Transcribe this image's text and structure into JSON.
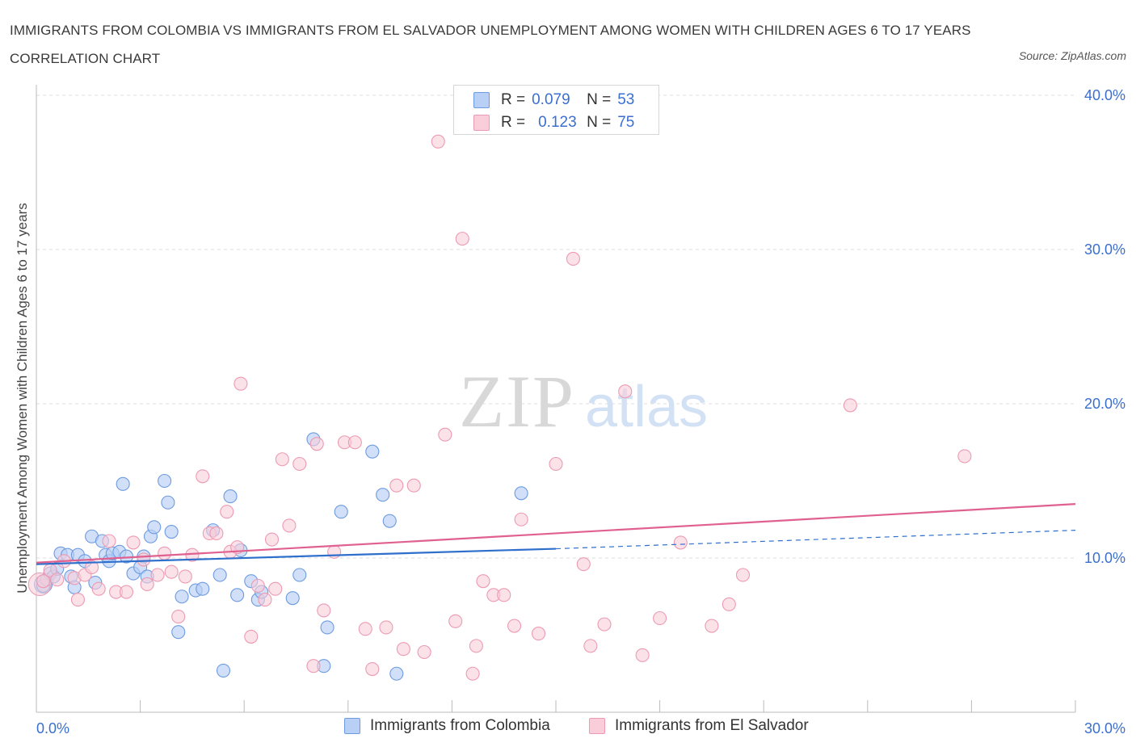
{
  "title": "IMMIGRANTS FROM COLOMBIA VS IMMIGRANTS FROM EL SALVADOR UNEMPLOYMENT AMONG WOMEN WITH CHILDREN AGES 6 TO 17 YEARS CORRELATION CHART",
  "source": "Source: ZipAtlas.com",
  "colors": {
    "colombia_fill": "#b8d0f5",
    "colombia_stroke": "#6d9be0",
    "colombia_line": "#2e6fcc",
    "elsalvador_fill": "#f9cdd9",
    "elsalvador_stroke": "#ec9ab3",
    "elsalvador_line": "#e0608f",
    "axis_label": "#3a6fd0",
    "grid": "#dddddd"
  },
  "legend_top": {
    "rows": [
      {
        "r_label": "R =",
        "r_value": "0.079",
        "n_label": "N =",
        "n_value": "53",
        "series": "colombia"
      },
      {
        "r_label": "R =",
        "r_value": "0.123",
        "n_label": "N =",
        "n_value": "75",
        "series": "elsalvador"
      }
    ]
  },
  "legend_bottom": {
    "items": [
      "Immigrants from Colombia",
      "Immigrants from El Salvador"
    ]
  },
  "chart_data": {
    "type": "scatter",
    "title": "IMMIGRANTS FROM COLOMBIA VS IMMIGRANTS FROM EL SALVADOR UNEMPLOYMENT AMONG WOMEN WITH CHILDREN AGES 6 TO 17 YEARS CORRELATION CHART",
    "xlabel": "",
    "ylabel": "Unemployment Among Women with Children Ages 6 to 17 years",
    "xlim": [
      0,
      30
    ],
    "ylim": [
      0,
      40
    ],
    "x_tick_labels": [
      "0.0%",
      "30.0%"
    ],
    "y_ticks": [
      10,
      20,
      30,
      40
    ],
    "y_tick_labels": [
      "10.0%",
      "20.0%",
      "30.0%",
      "40.0%"
    ],
    "grid": true,
    "legend_placement": "top-center",
    "watermark": "ZIPatlas",
    "series": [
      {
        "name": "Immigrants from Colombia",
        "r": 0.079,
        "n": 53,
        "trend": {
          "x0": 0,
          "y0": 9.6,
          "x1": 15,
          "y1": 10.6,
          "dashed_to_x": 30,
          "dashed_to_y": 11.8
        },
        "points": [
          [
            0.2,
            8.2
          ],
          [
            0.3,
            8.6
          ],
          [
            0.4,
            9.0
          ],
          [
            0.5,
            8.8
          ],
          [
            0.6,
            9.3
          ],
          [
            0.7,
            10.3
          ],
          [
            0.9,
            10.2
          ],
          [
            1.0,
            8.8
          ],
          [
            1.1,
            8.1
          ],
          [
            1.2,
            10.2
          ],
          [
            1.4,
            9.8
          ],
          [
            1.6,
            11.4
          ],
          [
            1.7,
            8.4
          ],
          [
            1.9,
            11.1
          ],
          [
            2.0,
            10.2
          ],
          [
            2.1,
            9.8
          ],
          [
            2.2,
            10.3
          ],
          [
            2.4,
            10.4
          ],
          [
            2.5,
            14.8
          ],
          [
            2.6,
            10.1
          ],
          [
            2.8,
            9.0
          ],
          [
            3.0,
            9.4
          ],
          [
            3.1,
            10.1
          ],
          [
            3.2,
            8.8
          ],
          [
            3.3,
            11.4
          ],
          [
            3.4,
            12.0
          ],
          [
            3.7,
            15.0
          ],
          [
            3.8,
            13.6
          ],
          [
            3.9,
            11.7
          ],
          [
            4.1,
            5.2
          ],
          [
            4.2,
            7.5
          ],
          [
            4.6,
            7.9
          ],
          [
            4.8,
            8.0
          ],
          [
            5.1,
            11.8
          ],
          [
            5.3,
            8.9
          ],
          [
            5.4,
            2.7
          ],
          [
            5.6,
            14.0
          ],
          [
            5.8,
            7.6
          ],
          [
            5.9,
            10.5
          ],
          [
            6.2,
            8.5
          ],
          [
            6.4,
            7.3
          ],
          [
            6.5,
            7.8
          ],
          [
            7.4,
            7.4
          ],
          [
            7.6,
            8.9
          ],
          [
            8.0,
            17.7
          ],
          [
            8.3,
            3.0
          ],
          [
            8.4,
            5.5
          ],
          [
            8.8,
            13.0
          ],
          [
            9.7,
            16.9
          ],
          [
            10.0,
            14.1
          ],
          [
            10.2,
            12.4
          ],
          [
            10.4,
            2.5
          ],
          [
            14.0,
            14.2
          ]
        ]
      },
      {
        "name": "Immigrants from El Salvador",
        "r": 0.123,
        "n": 75,
        "trend": {
          "x0": 0,
          "y0": 9.7,
          "x1": 30,
          "y1": 13.5
        },
        "points": [
          [
            0.2,
            8.5
          ],
          [
            0.4,
            9.2
          ],
          [
            0.6,
            8.6
          ],
          [
            0.8,
            9.8
          ],
          [
            1.1,
            8.7
          ],
          [
            1.2,
            7.3
          ],
          [
            1.4,
            8.9
          ],
          [
            1.6,
            9.4
          ],
          [
            1.8,
            8.0
          ],
          [
            2.1,
            11.1
          ],
          [
            2.3,
            7.8
          ],
          [
            2.6,
            7.8
          ],
          [
            2.8,
            11.0
          ],
          [
            3.1,
            9.9
          ],
          [
            3.2,
            8.3
          ],
          [
            3.5,
            8.9
          ],
          [
            3.7,
            10.3
          ],
          [
            3.9,
            9.1
          ],
          [
            4.1,
            6.2
          ],
          [
            4.3,
            8.8
          ],
          [
            4.5,
            10.2
          ],
          [
            4.8,
            15.3
          ],
          [
            5.0,
            11.6
          ],
          [
            5.2,
            11.6
          ],
          [
            5.5,
            13.0
          ],
          [
            5.6,
            10.4
          ],
          [
            5.8,
            10.7
          ],
          [
            5.9,
            21.3
          ],
          [
            6.2,
            4.9
          ],
          [
            6.4,
            8.2
          ],
          [
            6.6,
            7.3
          ],
          [
            6.8,
            11.2
          ],
          [
            7.1,
            16.4
          ],
          [
            7.3,
            12.1
          ],
          [
            7.6,
            16.1
          ],
          [
            8.0,
            3.0
          ],
          [
            8.1,
            17.4
          ],
          [
            8.3,
            6.6
          ],
          [
            8.6,
            10.4
          ],
          [
            8.9,
            17.5
          ],
          [
            9.2,
            17.5
          ],
          [
            9.5,
            5.4
          ],
          [
            9.7,
            2.8
          ],
          [
            10.1,
            5.5
          ],
          [
            10.4,
            14.7
          ],
          [
            10.6,
            4.1
          ],
          [
            10.9,
            14.7
          ],
          [
            11.2,
            3.9
          ],
          [
            11.6,
            37.0
          ],
          [
            11.8,
            18.0
          ],
          [
            12.1,
            5.9
          ],
          [
            12.3,
            30.7
          ],
          [
            12.6,
            2.5
          ],
          [
            12.9,
            8.5
          ],
          [
            13.2,
            7.6
          ],
          [
            13.5,
            7.6
          ],
          [
            13.8,
            5.6
          ],
          [
            14.0,
            12.5
          ],
          [
            14.5,
            5.1
          ],
          [
            15.0,
            16.1
          ],
          [
            15.5,
            29.4
          ],
          [
            15.8,
            9.6
          ],
          [
            16.0,
            4.3
          ],
          [
            16.4,
            5.7
          ],
          [
            17.0,
            20.8
          ],
          [
            17.5,
            3.7
          ],
          [
            18.0,
            6.1
          ],
          [
            18.6,
            11.0
          ],
          [
            19.5,
            5.6
          ],
          [
            20.0,
            7.0
          ],
          [
            20.4,
            8.9
          ],
          [
            23.5,
            19.9
          ],
          [
            26.8,
            16.6
          ],
          [
            6.9,
            8.0
          ],
          [
            12.7,
            4.3
          ]
        ]
      }
    ]
  }
}
